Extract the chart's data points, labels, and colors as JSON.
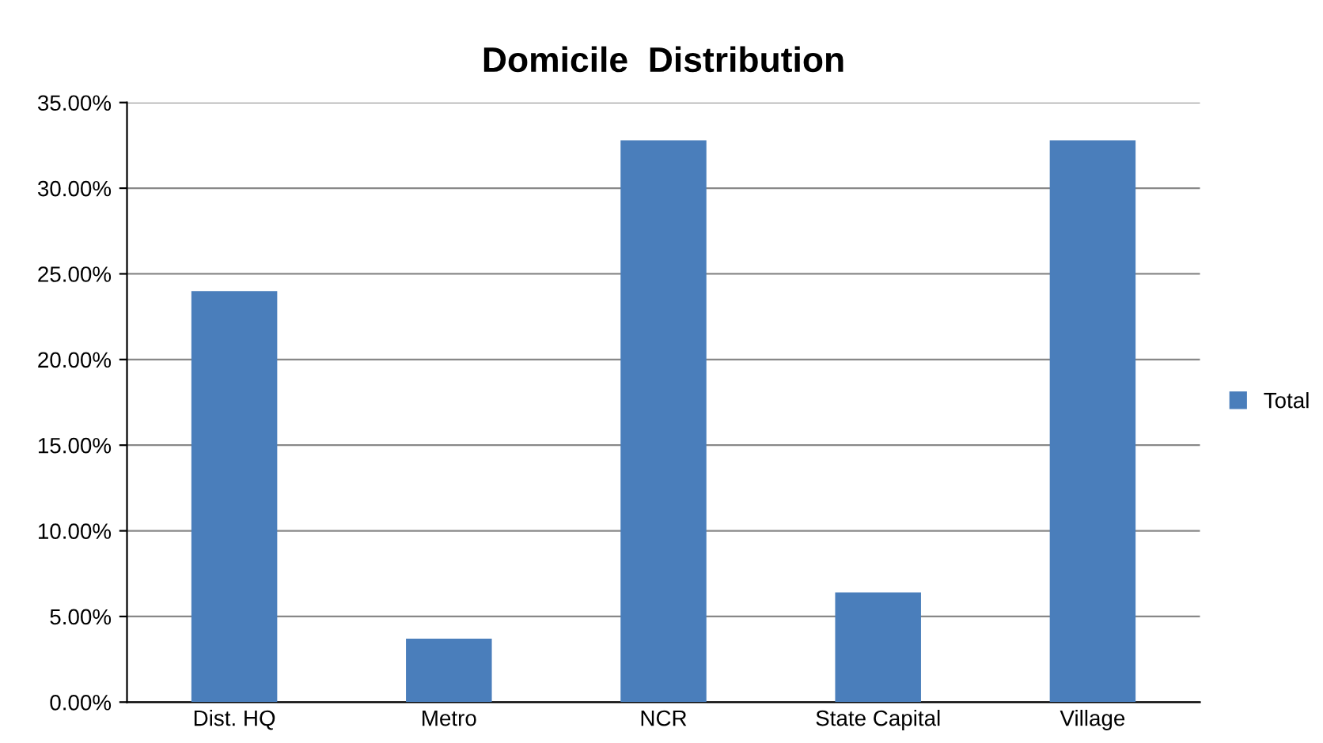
{
  "chart_data": {
    "type": "bar",
    "title": "Domicile  Distribution",
    "categories": [
      "Dist. HQ",
      "Metro",
      "NCR",
      "State Capital",
      "Village"
    ],
    "series": [
      {
        "name": "Total",
        "color": "#4a7ebb",
        "values": [
          24.0,
          3.7,
          32.8,
          6.4,
          32.8
        ]
      }
    ],
    "ylim": [
      0,
      35
    ],
    "yticks": [
      {
        "value": 0,
        "label": "0.00%"
      },
      {
        "value": 5,
        "label": "5.00%"
      },
      {
        "value": 10,
        "label": "10.00%"
      },
      {
        "value": 15,
        "label": "15.00%"
      },
      {
        "value": 20,
        "label": "20.00%"
      },
      {
        "value": 25,
        "label": "25.00%"
      },
      {
        "value": 30,
        "label": "30.00%"
      },
      {
        "value": 35,
        "label": "35.00%"
      }
    ],
    "grid": "y",
    "legend": "right"
  }
}
